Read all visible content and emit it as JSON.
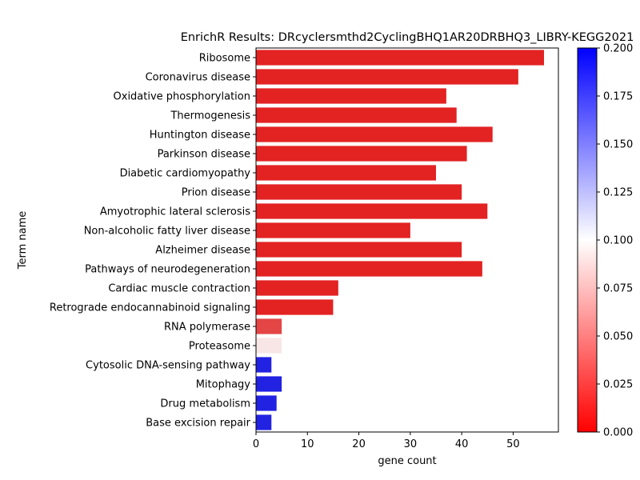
{
  "chart_data": {
    "type": "bar",
    "orientation": "horizontal",
    "title": "EnrichR Results: DRcyclersmthd2CyclingBHQ1AR20DRBHQ3_LIBRY-KEGG2021",
    "xlabel": "gene count",
    "ylabel": "Term name",
    "xlim": [
      0,
      58.8
    ],
    "xticks": [
      "0",
      "10",
      "20",
      "30",
      "40",
      "50"
    ],
    "grid": false,
    "categories": [
      "Ribosome",
      "Coronavirus disease",
      "Oxidative phosphorylation",
      "Thermogenesis",
      "Huntington disease",
      "Parkinson disease",
      "Diabetic cardiomyopathy",
      "Prion disease",
      "Amyotrophic lateral sclerosis",
      "Non-alcoholic fatty liver disease",
      "Alzheimer disease",
      "Pathways of neurodegeneration",
      "Cardiac muscle contraction",
      "Retrograde endocannabinoid signaling",
      "RNA polymerase",
      "Proteasome",
      "Cytosolic DNA-sensing pathway",
      "Mitophagy",
      "Drug metabolism",
      "Base excision repair"
    ],
    "values": [
      56,
      51,
      37,
      39,
      46,
      41,
      35,
      40,
      45,
      30,
      40,
      44,
      16,
      15,
      5,
      5,
      3,
      5,
      4,
      3
    ],
    "bar_colors": [
      "#e32222",
      "#e32222",
      "#e32222",
      "#e32222",
      "#e32222",
      "#e32222",
      "#e32222",
      "#e32222",
      "#e32222",
      "#e32222",
      "#e32222",
      "#e32222",
      "#e32222",
      "#e32222",
      "#e44545",
      "#f8e6e6",
      "#2222e2",
      "#2222e2",
      "#2222e2",
      "#2222e2"
    ],
    "colorbar": {
      "range": [
        0,
        0.2
      ],
      "ticks": [
        "0.000",
        "0.025",
        "0.050",
        "0.075",
        "0.100",
        "0.125",
        "0.150",
        "0.175",
        "0.200"
      ],
      "colormap": [
        "#ff0000",
        "#ffffff",
        "#0000ff"
      ]
    }
  }
}
